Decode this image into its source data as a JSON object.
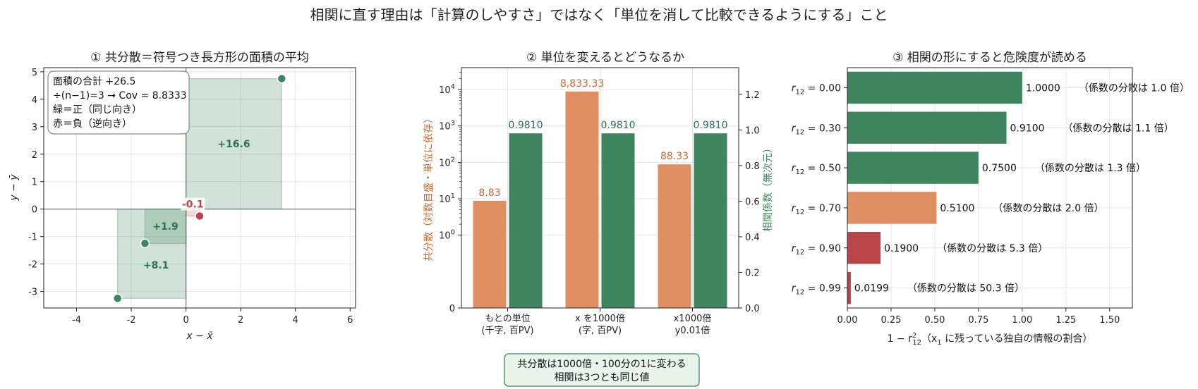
{
  "suptitle": "相関に直す理由は「計算のしやすさ」ではなく「単位を消して比較できるようにする」こと",
  "colors": {
    "green": "#3f8660",
    "orange": "#e08f62",
    "red": "#b94548",
    "axis": "#222222",
    "grid": "#e6e6e6",
    "zero": "#888888",
    "note_bg": "#e9f4ea",
    "note_border": "#3f8660"
  },
  "chart_data": [
    {
      "id": "panel1",
      "type": "scatter",
      "title": "① 共分散＝符号つき長方形の面積の平均",
      "xlabel": "x − x̄",
      "ylabel": "y − ȳ",
      "xlim": [
        -5.2,
        6.2
      ],
      "ylim": [
        -3.6,
        5.15
      ],
      "xticks": [
        -4,
        -2,
        0,
        2,
        4,
        6
      ],
      "xticklabels": [
        "-4",
        "-2",
        "0",
        "2",
        "4",
        "6"
      ],
      "yticks": [
        -3,
        -2,
        -1,
        0,
        1,
        2,
        3,
        4,
        5
      ],
      "yticklabels": [
        "-3",
        "-2",
        "-1",
        "0",
        "1",
        "2",
        "3",
        "4",
        "5"
      ],
      "grid": true,
      "points": [
        {
          "x": 3.5,
          "y": 4.75,
          "sign": "pos",
          "area_label": "+16.6"
        },
        {
          "x": -1.5,
          "y": -1.25,
          "sign": "pos",
          "area_label": "+1.9"
        },
        {
          "x": -2.5,
          "y": -3.25,
          "sign": "pos",
          "area_label": "+8.1"
        },
        {
          "x": 0.5,
          "y": -0.25,
          "sign": "neg",
          "area_label": "-0.1"
        }
      ],
      "info_lines": [
        "面積の合計 +26.5",
        "÷(n−1)=3 → Cov = 8.8333",
        "緑＝正（同じ向き）",
        "赤＝負（逆向き）"
      ]
    },
    {
      "id": "panel2",
      "type": "bar",
      "title": "② 単位を変えるとどうなるか",
      "categories": [
        [
          "もとの単位",
          "(千字, 百PV)"
        ],
        [
          "x を1000倍",
          "(字, 百PV)"
        ],
        [
          "x1000倍",
          "y0.01倍"
        ]
      ],
      "series": [
        {
          "name": "共分散",
          "axis": "left",
          "values": [
            8.83,
            8833.33,
            88.33
          ],
          "labels": [
            "8.83",
            "8,833.33",
            "88.33"
          ]
        },
        {
          "name": "相関係数",
          "axis": "right",
          "values": [
            0.981,
            0.981,
            0.981
          ],
          "labels": [
            "0.9810",
            "0.9810",
            "0.9810"
          ]
        }
      ],
      "ylabel_left": "共分散（対数目盛・単位に依存）",
      "ylabel_right": "相関係数（無次元）",
      "yscale_left": "log",
      "ylim_left": [
        0.01,
        40000
      ],
      "yticklabels_left": [
        {
          "base": "10",
          "exp": "0"
        },
        {
          "base": "10",
          "exp": "1"
        },
        {
          "base": "10",
          "exp": "2"
        },
        {
          "base": "10",
          "exp": "3"
        },
        {
          "base": "10",
          "exp": "4"
        }
      ],
      "ylim_right": [
        0,
        1.35
      ],
      "yticks_right": [
        0,
        0.2,
        0.4,
        0.6,
        0.8,
        1.0,
        1.2
      ],
      "yticklabels_right": [
        "0.0",
        "0.2",
        "0.4",
        "0.6",
        "0.8",
        "1.0",
        "1.2"
      ],
      "left_zero_label": "0",
      "grid": true,
      "note": [
        "共分散は1000倍・100分の1に変わる",
        "相関は3つとも同じ値"
      ]
    },
    {
      "id": "panel3",
      "type": "bar",
      "orientation": "horizontal",
      "title": "③ 相関の形にすると危険度が読める",
      "categories": [
        "0.00",
        "0.30",
        "0.50",
        "0.70",
        "0.90",
        "0.99"
      ],
      "category_prefix": "r",
      "category_sub": "12",
      "values": [
        1.0,
        0.91,
        0.75,
        0.51,
        0.19,
        0.0199
      ],
      "value_labels": [
        "1.0000",
        "0.9100",
        "0.7500",
        "0.5100",
        "0.1900",
        "0.0199"
      ],
      "annotations": [
        "（係数の分散は 1.0 倍）",
        "（係数の分散は 1.1 倍）",
        "（係数の分散は 1.3 倍）",
        "（係数の分散は 2.0 倍）",
        "（係数の分散は 5.3 倍）",
        "（係数の分散は 50.3 倍）"
      ],
      "colors": [
        "#3f8660",
        "#3f8660",
        "#3f8660",
        "#e08f62",
        "#b94548",
        "#b94548"
      ],
      "xlim": [
        0,
        1.63
      ],
      "xticks": [
        0,
        0.25,
        0.5,
        0.75,
        1.0,
        1.25,
        1.5
      ],
      "xticklabels": [
        "0.00",
        "0.25",
        "0.50",
        "0.75",
        "1.00",
        "1.25",
        "1.50"
      ],
      "xlabel_pre": "1 − r",
      "xlabel_sup": "2",
      "xlabel_sub": "12",
      "xlabel_mid": "（x",
      "xlabel_sub2": "1",
      "xlabel_post": " に残っている独自の情報の割合）",
      "grid": true
    }
  ]
}
